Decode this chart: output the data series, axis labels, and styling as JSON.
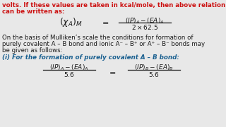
{
  "background_color": "#e8e8e8",
  "red_text_line1": "volts. If these values are taken in kcal/mole, then above relation",
  "red_text_line2": "can be written as:",
  "black_lines": [
    "On the basis of Mulliken’s scale the conditions for formation of",
    "purely covalent A – B bond and ionic A⁻ – B⁺ or A⁺ – B⁻ bonds may",
    "be given as follows:"
  ],
  "blue_heading": "(i) For the formation of purely covalent A – B bond:",
  "red_color": "#cc1111",
  "black_color": "#1a1a1a",
  "blue_color": "#1a6090",
  "dark_color": "#1a1a1a"
}
